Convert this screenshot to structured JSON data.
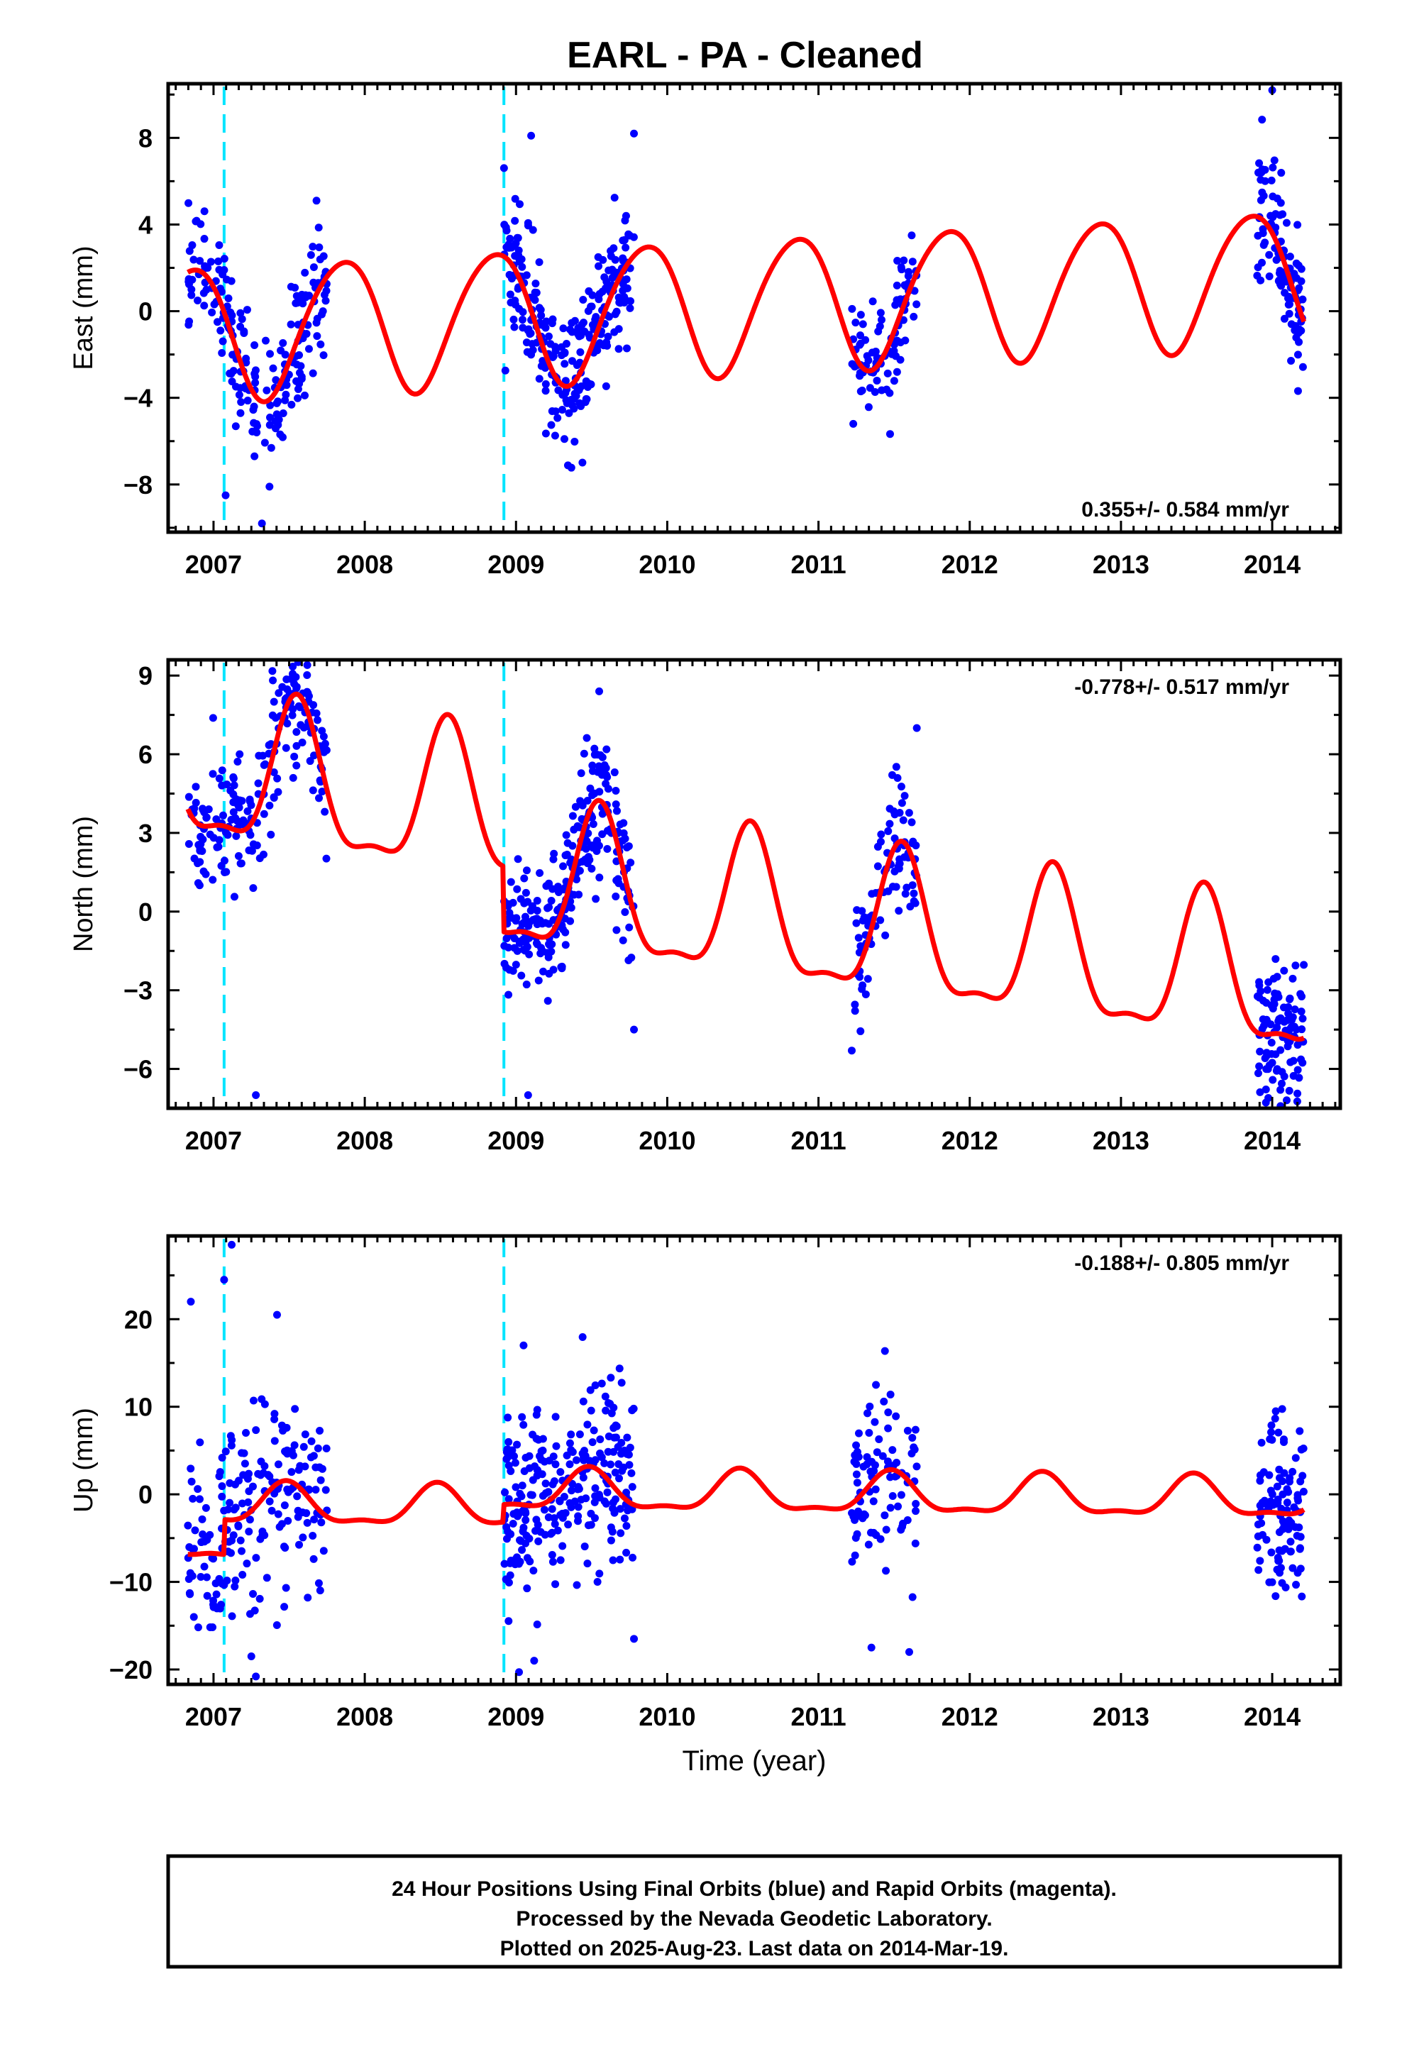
{
  "title": "EARL  - PA - Cleaned",
  "x_axis_label": "Time (year)",
  "footer_lines": [
    "24 Hour Positions Using Final Orbits (blue) and Rapid Orbits (magenta).",
    "Processed by the Nevada Geodetic Laboratory.",
    "Plotted on 2025-Aug-23. Last data on 2014-Mar-19."
  ],
  "colors": {
    "data": "#0000ff",
    "model": "#ff0000",
    "equipment_change": "#00e5ff",
    "frame": "#000000"
  },
  "chart_data": [
    {
      "type": "scatter",
      "component": "East",
      "ylabel": "East (mm)",
      "xlim": [
        2006.7,
        2014.45
      ],
      "ylim": [
        -10.2,
        10.5
      ],
      "yticks": [
        -8,
        -4,
        0,
        4,
        8
      ],
      "xticks": [
        2007,
        2008,
        2009,
        2010,
        2011,
        2012,
        2013,
        2014
      ],
      "rate_label": "0.355+/- 0.584 mm/yr",
      "rate_position": "bottom-right",
      "equipment_changes": [
        2007.07,
        2008.92
      ],
      "model": {
        "offset": 0.3,
        "trend": 0.355,
        "reference_epoch": 2010.5,
        "annual_amplitude": 3.1,
        "annual_peak": 2008.85,
        "semiannual_amplitude": 0.3,
        "semiannual_peak": 2009.05,
        "steps": [
          {
            "epoch": 2008.92,
            "size": 0.0
          }
        ]
      },
      "data_spans": [
        {
          "start": 2006.83,
          "end": 2007.75,
          "count": 200
        },
        {
          "start": 2008.92,
          "end": 2009.78,
          "count": 260
        },
        {
          "start": 2011.22,
          "end": 2011.65,
          "count": 90
        },
        {
          "start": 2013.9,
          "end": 2014.21,
          "count": 110
        }
      ],
      "scatter_sigma": 1.5,
      "outliers": [
        [
          2014.0,
          10.2
        ],
        [
          2007.32,
          -9.8
        ],
        [
          2007.08,
          -8.5
        ],
        [
          2007.37,
          -8.1
        ],
        [
          2009.1,
          8.1
        ],
        [
          2009.78,
          8.2
        ],
        [
          2009.32,
          -5.9
        ],
        [
          2011.23,
          -5.2
        ]
      ]
    },
    {
      "type": "scatter",
      "component": "North",
      "ylabel": "North (mm)",
      "xlim": [
        2006.7,
        2014.45
      ],
      "ylim": [
        -7.5,
        9.6
      ],
      "yticks": [
        -6,
        -3,
        0,
        3,
        6,
        9
      ],
      "xticks": [
        2007,
        2008,
        2009,
        2010,
        2011,
        2012,
        2013,
        2014
      ],
      "rate_label": "-0.778+/- 0.517 mm/yr",
      "rate_position": "top-right",
      "equipment_changes": [
        2007.07,
        2008.92
      ],
      "model": {
        "offset": -0.1,
        "trend": -0.778,
        "reference_epoch": 2010.5,
        "annual_amplitude": 2.7,
        "annual_peak": 2009.55,
        "semiannual_amplitude": 0.9,
        "semiannual_peak": 2009.55,
        "steps": [
          {
            "epoch": 2008.92,
            "size": 2.5
          }
        ]
      },
      "data_spans": [
        {
          "start": 2006.83,
          "end": 2007.75,
          "count": 200
        },
        {
          "start": 2008.92,
          "end": 2009.78,
          "count": 260
        },
        {
          "start": 2011.22,
          "end": 2011.65,
          "count": 90
        },
        {
          "start": 2013.9,
          "end": 2014.21,
          "count": 110
        }
      ],
      "scatter_sigma": 1.3,
      "outliers": [
        [
          2007.62,
          9.4
        ],
        [
          2007.4,
          8.0
        ],
        [
          2009.55,
          8.4
        ],
        [
          2007.28,
          -7.0
        ],
        [
          2009.08,
          -7.0
        ],
        [
          2009.78,
          -4.5
        ],
        [
          2011.22,
          -5.3
        ],
        [
          2011.65,
          7.0
        ]
      ]
    },
    {
      "type": "scatter",
      "component": "Up",
      "ylabel": "Up (mm)",
      "xlim": [
        2006.7,
        2014.45
      ],
      "ylim": [
        -21.7,
        29.5
      ],
      "yticks": [
        -20,
        -10,
        0,
        10,
        20
      ],
      "xticks": [
        2007,
        2008,
        2009,
        2010,
        2011,
        2012,
        2013,
        2014
      ],
      "rate_label": "-0.188+/- 0.805 mm/yr",
      "rate_position": "top-right",
      "equipment_changes": [
        2007.07,
        2008.92
      ],
      "model": {
        "offset": 0.0,
        "trend": -0.188,
        "reference_epoch": 2010.5,
        "annual_amplitude": 2.2,
        "annual_peak": 2009.48,
        "semiannual_amplitude": 0.8,
        "semiannual_peak": 2009.48,
        "steps": [
          {
            "epoch": 2007.07,
            "size": -4.0
          },
          {
            "epoch": 2008.92,
            "size": -2.0
          }
        ]
      },
      "data_spans": [
        {
          "start": 2006.83,
          "end": 2007.75,
          "count": 200
        },
        {
          "start": 2008.92,
          "end": 2009.78,
          "count": 260
        },
        {
          "start": 2011.22,
          "end": 2011.65,
          "count": 90
        },
        {
          "start": 2013.9,
          "end": 2014.21,
          "count": 110
        }
      ],
      "scatter_sigma": 5.5,
      "outliers": [
        [
          2007.12,
          28.5
        ],
        [
          2007.07,
          24.5
        ],
        [
          2006.85,
          22.0
        ],
        [
          2007.42,
          20.5
        ],
        [
          2007.28,
          -20.8
        ],
        [
          2007.25,
          -18.5
        ],
        [
          2009.02,
          -20.3
        ],
        [
          2009.12,
          -19.0
        ],
        [
          2009.78,
          -16.5
        ],
        [
          2011.35,
          -17.5
        ],
        [
          2011.6,
          -18.0
        ],
        [
          2006.87,
          -14.0
        ],
        [
          2009.05,
          17.0
        ],
        [
          2011.38,
          12.5
        ]
      ]
    }
  ]
}
